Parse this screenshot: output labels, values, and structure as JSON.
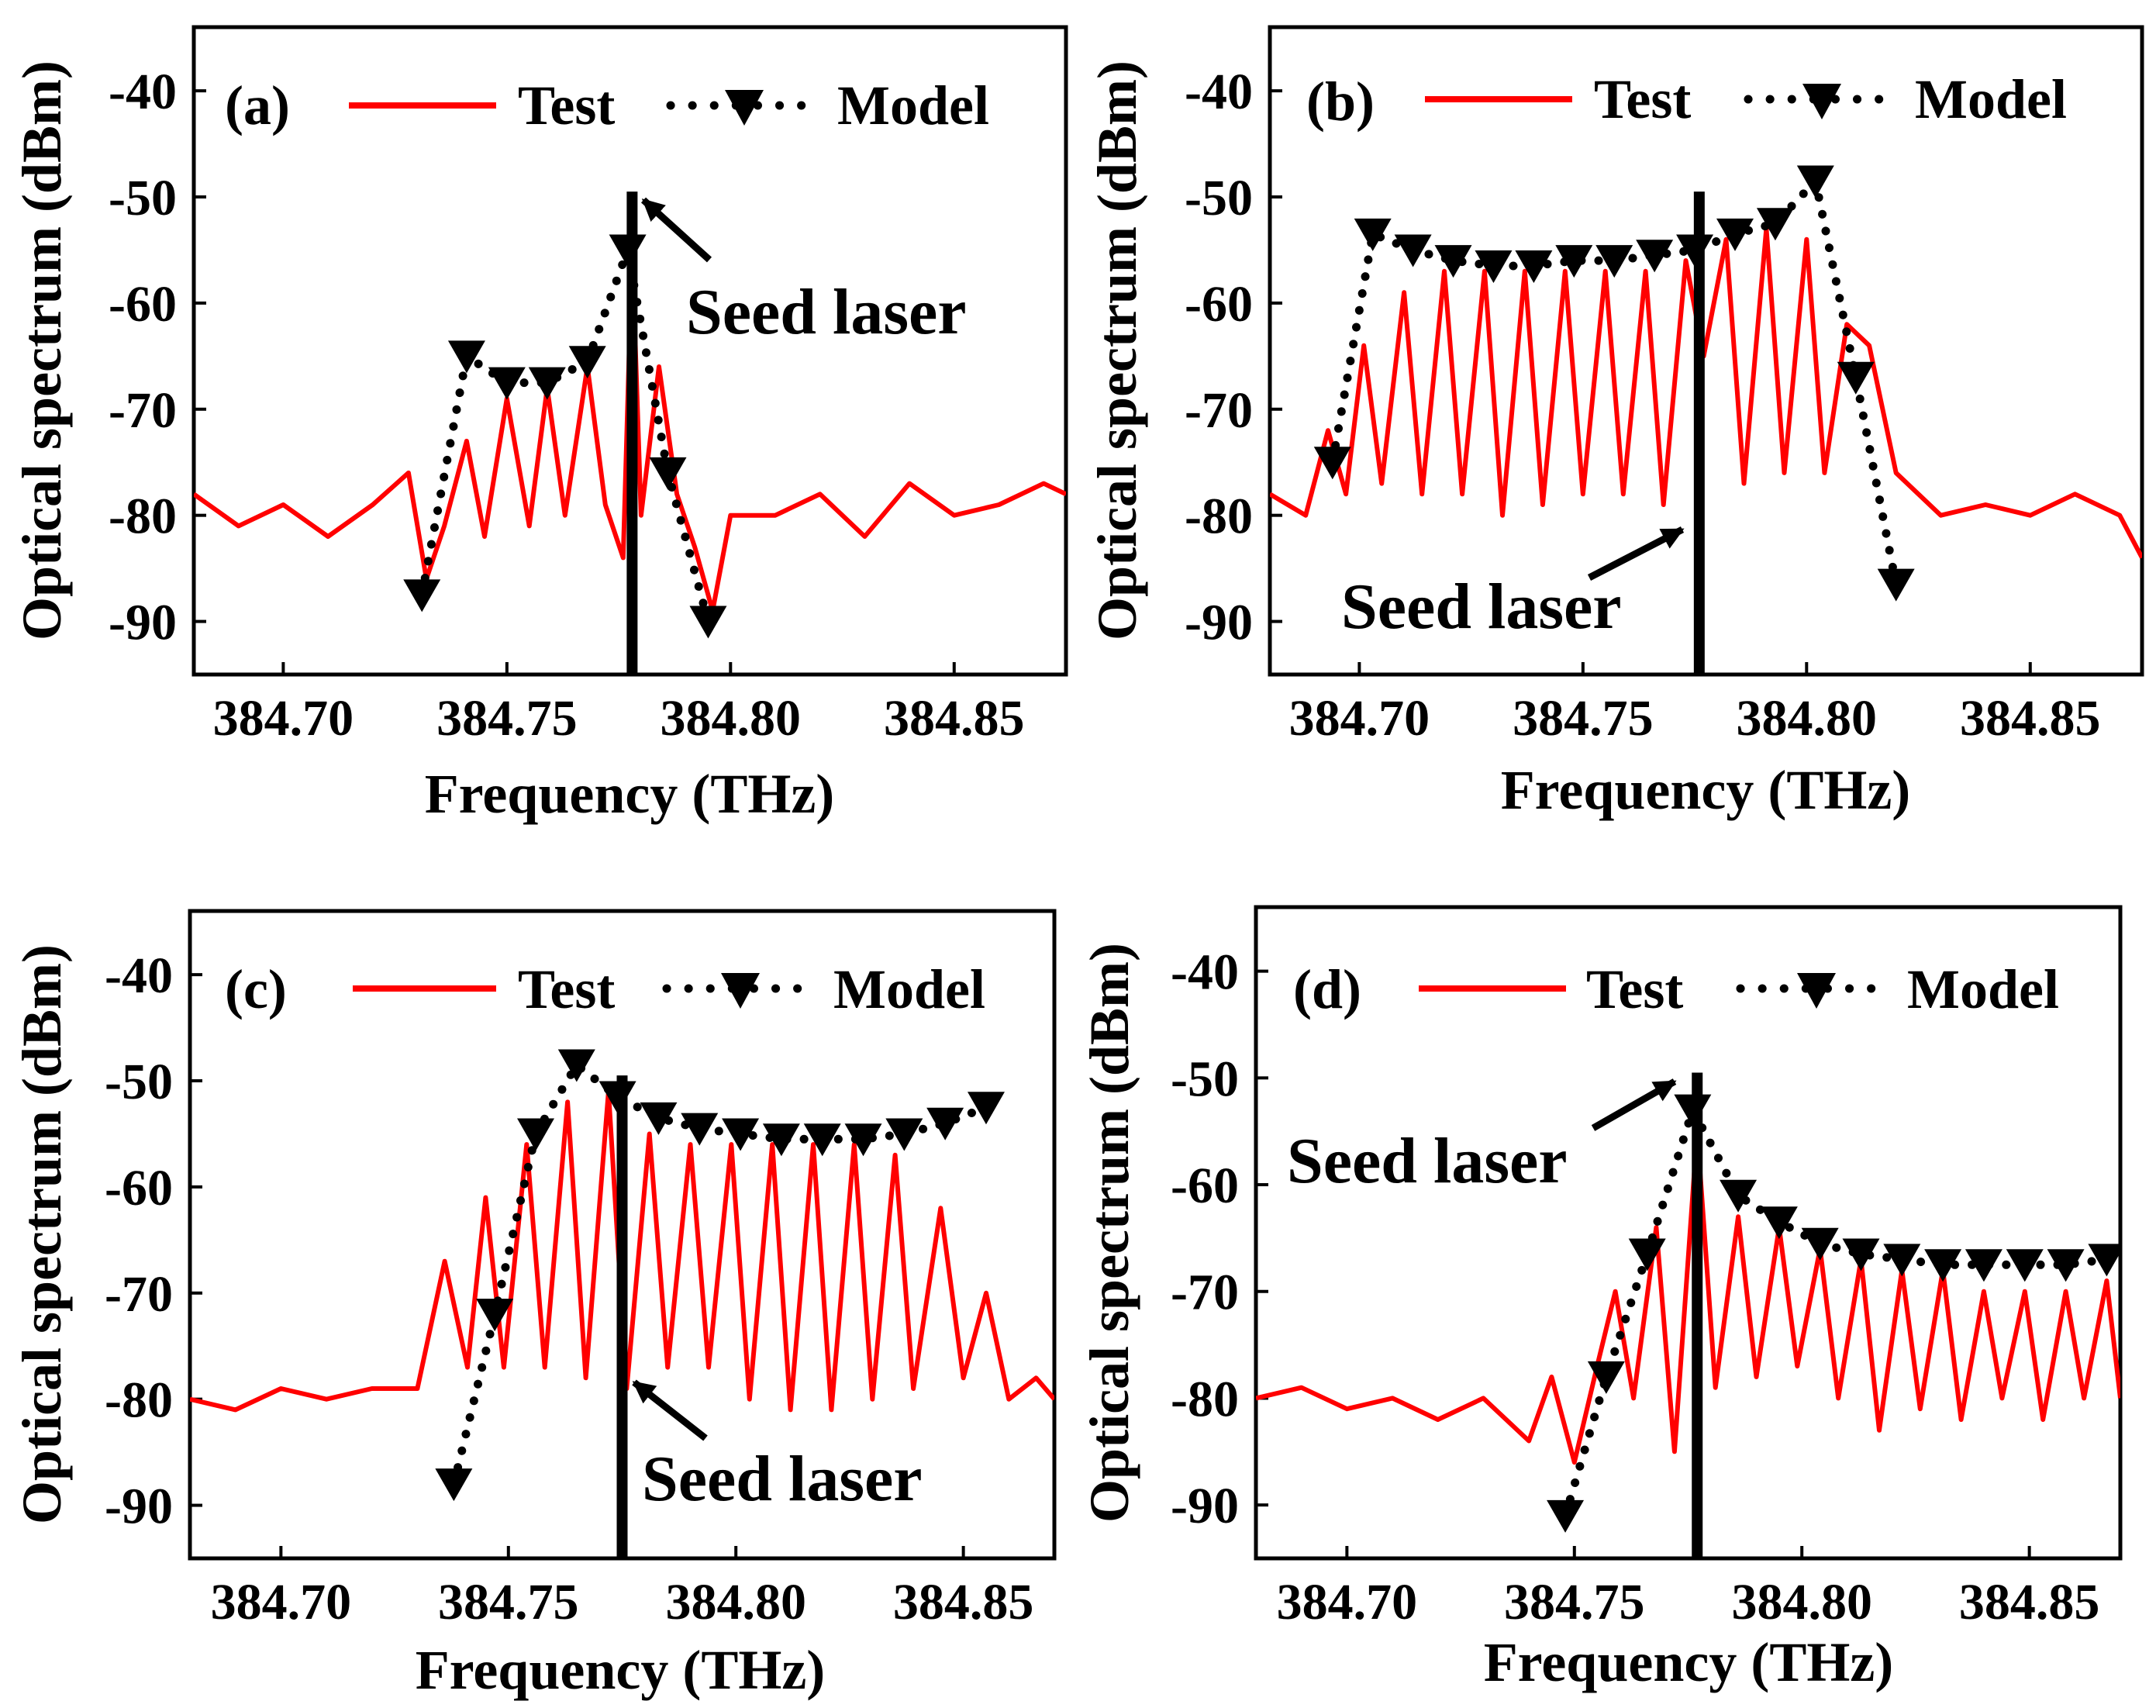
{
  "figure": {
    "legend_test_label": "Test",
    "legend_model_label": "Model",
    "xlabel": "Frequency (THz)",
    "ylabel": "Optical spectrum (dBm)",
    "colors": {
      "test": "#ff0000",
      "model": "#000000",
      "seed": "#000000"
    }
  },
  "chart_data": [
    {
      "type": "line",
      "panel": "(a)",
      "xlim": [
        384.68,
        384.875
      ],
      "ylim": [
        -95,
        -34
      ],
      "xticks": [
        384.7,
        384.75,
        384.8,
        384.85
      ],
      "xtick_labels": [
        "384.70",
        "384.75",
        "384.80",
        "384.85"
      ],
      "yticks": [
        -40,
        -50,
        -60,
        -70,
        -80,
        -90
      ],
      "ytick_labels": [
        "-40",
        "-50",
        "-60",
        "-70",
        "-80",
        "-90"
      ],
      "annotation": "Seed laser",
      "seed_laser_x": 384.778,
      "seed_laser_top": -49.5,
      "test": {
        "name": "Test",
        "x": [
          384.68,
          384.69,
          384.7,
          384.71,
          384.72,
          384.728,
          384.732,
          384.736,
          384.741,
          384.745,
          384.75,
          384.755,
          384.759,
          384.763,
          384.768,
          384.772,
          384.776,
          384.778,
          384.78,
          384.784,
          384.788,
          384.792,
          384.796,
          384.8,
          384.81,
          384.82,
          384.83,
          384.84,
          384.85,
          384.86,
          384.87,
          384.875
        ],
        "y": [
          -78,
          -81,
          -79,
          -82,
          -79,
          -76,
          -86,
          -81,
          -73,
          -82,
          -69,
          -81,
          -68,
          -80,
          -66,
          -79,
          -84,
          -55,
          -80,
          -66,
          -78,
          -83,
          -89,
          -80,
          -80,
          -78,
          -82,
          -77,
          -80,
          -79,
          -77,
          -78
        ]
      },
      "model": {
        "name": "Model",
        "x": [
          384.731,
          384.741,
          384.75,
          384.759,
          384.768,
          384.777,
          384.786,
          384.795
        ],
        "y": [
          -87.5,
          -65,
          -67.5,
          -67.5,
          -65.5,
          -55,
          -76,
          -90
        ]
      }
    },
    {
      "type": "line",
      "panel": "(b)",
      "xlim": [
        384.68,
        384.875
      ],
      "ylim": [
        -95,
        -34
      ],
      "xticks": [
        384.7,
        384.75,
        384.8,
        384.85
      ],
      "xtick_labels": [
        "384.70",
        "384.75",
        "384.80",
        "384.85"
      ],
      "yticks": [
        -40,
        -50,
        -60,
        -70,
        -80,
        -90
      ],
      "ytick_labels": [
        "-40",
        "-50",
        "-60",
        "-70",
        "-80",
        "-90"
      ],
      "annotation": "Seed laser",
      "seed_laser_x": 384.776,
      "seed_laser_top": -49.5,
      "test": {
        "name": "Test",
        "x": [
          384.68,
          384.688,
          384.693,
          384.697,
          384.701,
          384.705,
          384.71,
          384.714,
          384.719,
          384.723,
          384.728,
          384.732,
          384.737,
          384.741,
          384.746,
          384.75,
          384.755,
          384.759,
          384.764,
          384.768,
          384.773,
          384.777,
          384.782,
          384.786,
          384.791,
          384.795,
          384.8,
          384.804,
          384.809,
          384.814,
          384.82,
          384.83,
          384.84,
          384.85,
          384.86,
          384.87,
          384.875
        ],
        "y": [
          -78,
          -80,
          -72,
          -78,
          -64,
          -77,
          -59,
          -78,
          -57,
          -78,
          -57,
          -80,
          -57,
          -79,
          -57,
          -78,
          -57,
          -78,
          -57,
          -79,
          -56,
          -65,
          -54,
          -77,
          -53,
          -76,
          -54,
          -76,
          -62,
          -64,
          -76,
          -80,
          -79,
          -80,
          -78,
          -80,
          -84
        ]
      },
      "model": {
        "name": "Model",
        "x": [
          384.694,
          384.703,
          384.712,
          384.721,
          384.73,
          384.739,
          384.748,
          384.757,
          384.766,
          384.775,
          384.784,
          384.793,
          384.802,
          384.811,
          384.82
        ],
        "y": [
          -75,
          -53.5,
          -55,
          -56,
          -56.5,
          -56.5,
          -56,
          -56,
          -55.5,
          -55,
          -53.5,
          -52.5,
          -48.5,
          -67,
          -86.5
        ]
      }
    },
    {
      "type": "line",
      "panel": "(c)",
      "xlim": [
        384.68,
        384.87
      ],
      "ylim": [
        -95,
        -34
      ],
      "xticks": [
        384.7,
        384.75,
        384.8,
        384.85
      ],
      "xtick_labels": [
        "384.70",
        "384.75",
        "384.80",
        "384.85"
      ],
      "yticks": [
        -40,
        -50,
        -60,
        -70,
        -80,
        -90
      ],
      "ytick_labels": [
        "-40",
        "-50",
        "-60",
        "-70",
        "-80",
        "-90"
      ],
      "annotation": "Seed laser",
      "seed_laser_x": 384.775,
      "seed_laser_top": -49.5,
      "test": {
        "name": "Test",
        "x": [
          384.68,
          384.69,
          384.7,
          384.71,
          384.72,
          384.73,
          384.736,
          384.741,
          384.745,
          384.749,
          384.754,
          384.758,
          384.763,
          384.767,
          384.772,
          384.776,
          384.781,
          384.785,
          384.79,
          384.794,
          384.799,
          384.803,
          384.808,
          384.812,
          384.817,
          384.821,
          384.826,
          384.83,
          384.835,
          384.839,
          384.845,
          384.85,
          384.855,
          384.86,
          384.866,
          384.87
        ],
        "y": [
          -80,
          -81,
          -79,
          -80,
          -79,
          -79,
          -67,
          -77,
          -61,
          -77,
          -56,
          -77,
          -52,
          -78,
          -51,
          -79,
          -55,
          -77,
          -56,
          -77,
          -56,
          -80,
          -56,
          -81,
          -56,
          -81,
          -56,
          -80,
          -57,
          -79,
          -62,
          -78,
          -70,
          -80,
          -78,
          -80
        ]
      },
      "model": {
        "name": "Model",
        "x": [
          384.738,
          384.747,
          384.756,
          384.765,
          384.774,
          384.783,
          384.792,
          384.801,
          384.81,
          384.819,
          384.828,
          384.837,
          384.846,
          384.855
        ],
        "y": [
          -88,
          -72,
          -55,
          -48.5,
          -51.5,
          -53.5,
          -54.5,
          -55,
          -55.5,
          -55.5,
          -55.5,
          -55,
          -54,
          -52.5
        ]
      }
    },
    {
      "type": "line",
      "panel": "(d)",
      "xlim": [
        384.68,
        384.87
      ],
      "ylim": [
        -95,
        -34
      ],
      "xticks": [
        384.7,
        384.75,
        384.8,
        384.85
      ],
      "xtick_labels": [
        "384.70",
        "384.75",
        "384.80",
        "384.85"
      ],
      "yticks": [
        -40,
        -50,
        -60,
        -70,
        -80,
        -90
      ],
      "ytick_labels": [
        "-40",
        "-50",
        "-60",
        "-70",
        "-80",
        "-90"
      ],
      "annotation": "Seed laser",
      "seed_laser_x": 384.777,
      "seed_laser_top": -49.5,
      "test": {
        "name": "Test",
        "x": [
          384.68,
          384.69,
          384.7,
          384.71,
          384.72,
          384.73,
          384.74,
          384.745,
          384.75,
          384.755,
          384.759,
          384.763,
          384.768,
          384.772,
          384.777,
          384.781,
          384.786,
          384.79,
          384.795,
          384.799,
          384.804,
          384.808,
          384.813,
          384.817,
          384.822,
          384.826,
          384.831,
          384.835,
          384.84,
          384.844,
          384.849,
          384.853,
          384.858,
          384.862,
          384.867,
          384.87
        ],
        "y": [
          -80,
          -79,
          -81,
          -80,
          -82,
          -80,
          -84,
          -78,
          -86,
          -77,
          -70,
          -80,
          -64,
          -85,
          -55,
          -79,
          -63,
          -78,
          -64,
          -77,
          -66,
          -80,
          -67,
          -83,
          -68,
          -81,
          -68,
          -82,
          -70,
          -80,
          -70,
          -82,
          -70,
          -80,
          -69,
          -80
        ]
      },
      "model": {
        "name": "Model",
        "x": [
          384.748,
          384.757,
          384.766,
          384.776,
          384.786,
          384.795,
          384.804,
          384.813,
          384.822,
          384.831,
          384.84,
          384.849,
          384.858,
          384.867
        ],
        "y": [
          -91,
          -78,
          -66.5,
          -53,
          -61,
          -63.5,
          -65.5,
          -66.5,
          -67,
          -67.5,
          -67.5,
          -67.5,
          -67.5,
          -67
        ]
      }
    }
  ]
}
